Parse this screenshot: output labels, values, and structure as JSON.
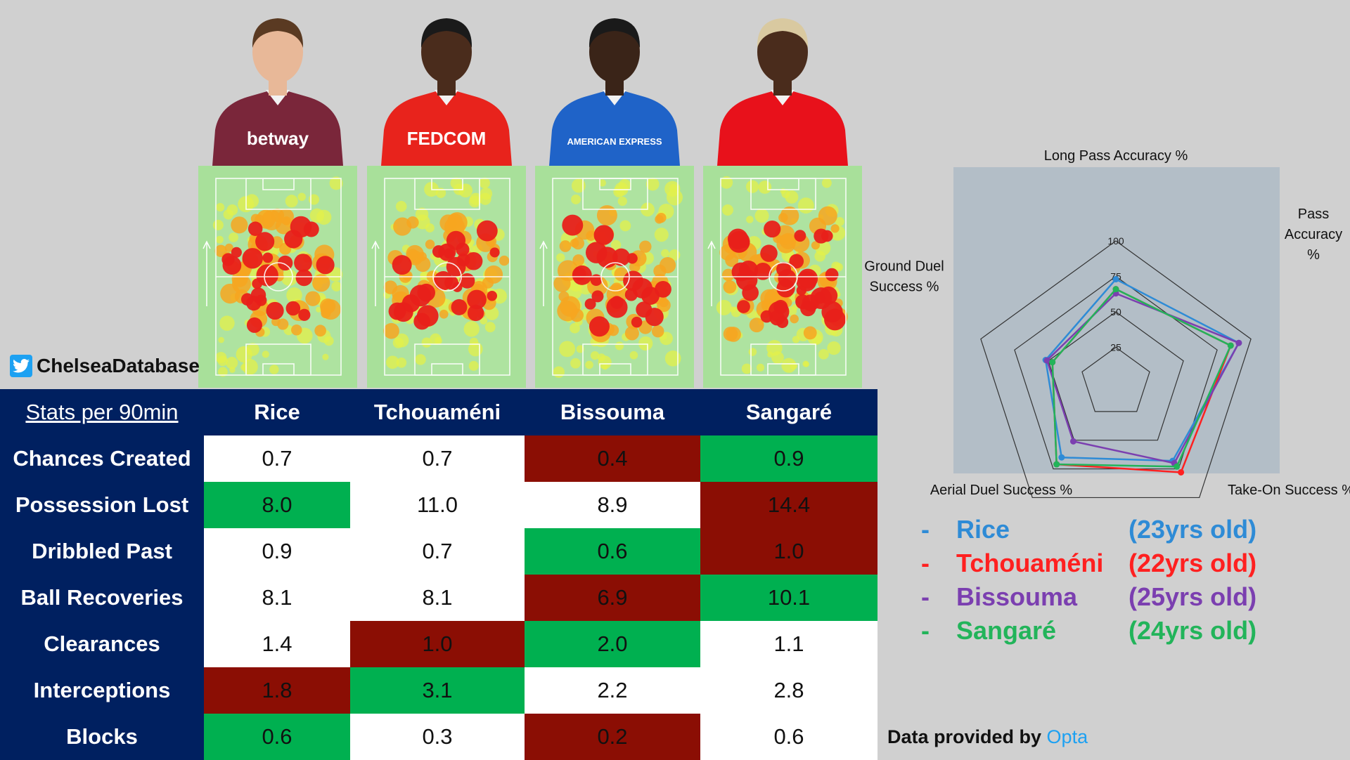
{
  "twitter": {
    "handle": "ChelseaDatabase",
    "icon": "twitter-bird-icon"
  },
  "players": [
    {
      "name": "Rice",
      "age_label": "(23yrs old)",
      "color": "#2e8bd6",
      "kit_color": "#7a263a",
      "kit_text": "betway",
      "skin": "#e8b898",
      "hair": "#5a3a22"
    },
    {
      "name": "Tchouaméni",
      "age_label": "(22yrs old)",
      "color": "#ff2020",
      "kit_color": "#e8231c",
      "kit_text": "FEDCOM",
      "skin": "#4a2c1c",
      "hair": "#1a1a1a"
    },
    {
      "name": "Bissouma",
      "age_label": "(25yrs old)",
      "color": "#7b3fb0",
      "kit_color": "#1f63c8",
      "kit_text": "AMERICAN EXPRESS",
      "skin": "#3a2418",
      "hair": "#1a1a1a"
    },
    {
      "name": "Sangaré",
      "age_label": "(24yrs old)",
      "color": "#22b45a",
      "kit_color": "#e8111b",
      "kit_text": "",
      "skin": "#4a2c1c",
      "hair": "#d9c9a0"
    }
  ],
  "table": {
    "header_label": "Stats per 90min",
    "columns": [
      "Rice",
      "Tchouaméni",
      "Bissouma",
      "Sangaré"
    ],
    "rows": [
      {
        "label": "Chances Created",
        "values": [
          "0.7",
          "0.7",
          "0.4",
          "0.9"
        ],
        "status": [
          "",
          "",
          "worst",
          "best"
        ]
      },
      {
        "label": "Possession Lost",
        "values": [
          "8.0",
          "11.0",
          "8.9",
          "14.4"
        ],
        "status": [
          "best",
          "",
          "",
          "worst"
        ]
      },
      {
        "label": "Dribbled Past",
        "values": [
          "0.9",
          "0.7",
          "0.6",
          "1.0"
        ],
        "status": [
          "",
          "",
          "best",
          "worst"
        ]
      },
      {
        "label": "Ball Recoveries",
        "values": [
          "8.1",
          "8.1",
          "6.9",
          "10.1"
        ],
        "status": [
          "",
          "",
          "worst",
          "best"
        ]
      },
      {
        "label": "Clearances",
        "values": [
          "1.4",
          "1.0",
          "2.0",
          "1.1"
        ],
        "status": [
          "",
          "worst",
          "best",
          ""
        ]
      },
      {
        "label": "Interceptions",
        "values": [
          "1.8",
          "3.1",
          "2.2",
          "2.8"
        ],
        "status": [
          "worst",
          "best",
          "",
          ""
        ]
      },
      {
        "label": "Blocks",
        "values": [
          "0.6",
          "0.3",
          "0.2",
          "0.6"
        ],
        "status": [
          "best",
          "",
          "worst",
          ""
        ]
      }
    ],
    "colors": {
      "header_bg": "#002060",
      "best": "#00b050",
      "worst": "#8b0e04",
      "neutral": "#ffffff"
    }
  },
  "chart_data": {
    "type": "radar",
    "axes": [
      "Long Pass Accuracy %",
      "Pass Accuracy %",
      "Take-On Success %",
      "Aerial Duel Success %",
      "Ground Duel Success %"
    ],
    "axis_labels": [
      [
        "Long Pass Accuracy %"
      ],
      [
        "Pass",
        "Accuracy",
        "%"
      ],
      [
        "Take-On Success %"
      ],
      [
        "Aerial Duel Success %"
      ],
      [
        "Ground Duel",
        "Success %"
      ]
    ],
    "ticks": [
      "25",
      "50",
      "75",
      "100"
    ],
    "range": [
      0,
      100
    ],
    "series": [
      {
        "name": "Rice",
        "values": [
          73,
          91,
          68,
          65,
          52
        ]
      },
      {
        "name": "Tchouaméni",
        "values": [
          66,
          85,
          78,
          71,
          47
        ]
      },
      {
        "name": "Bissouma",
        "values": [
          63,
          91,
          70,
          51,
          51
        ]
      },
      {
        "name": "Sangaré",
        "values": [
          66,
          85,
          73,
          71,
          47
        ]
      }
    ],
    "colors": [
      "#2e8bd6",
      "#ff2020",
      "#7b3fb0",
      "#22b45a"
    ]
  },
  "source": {
    "prefix": "Data provided by ",
    "name": "Opta"
  }
}
